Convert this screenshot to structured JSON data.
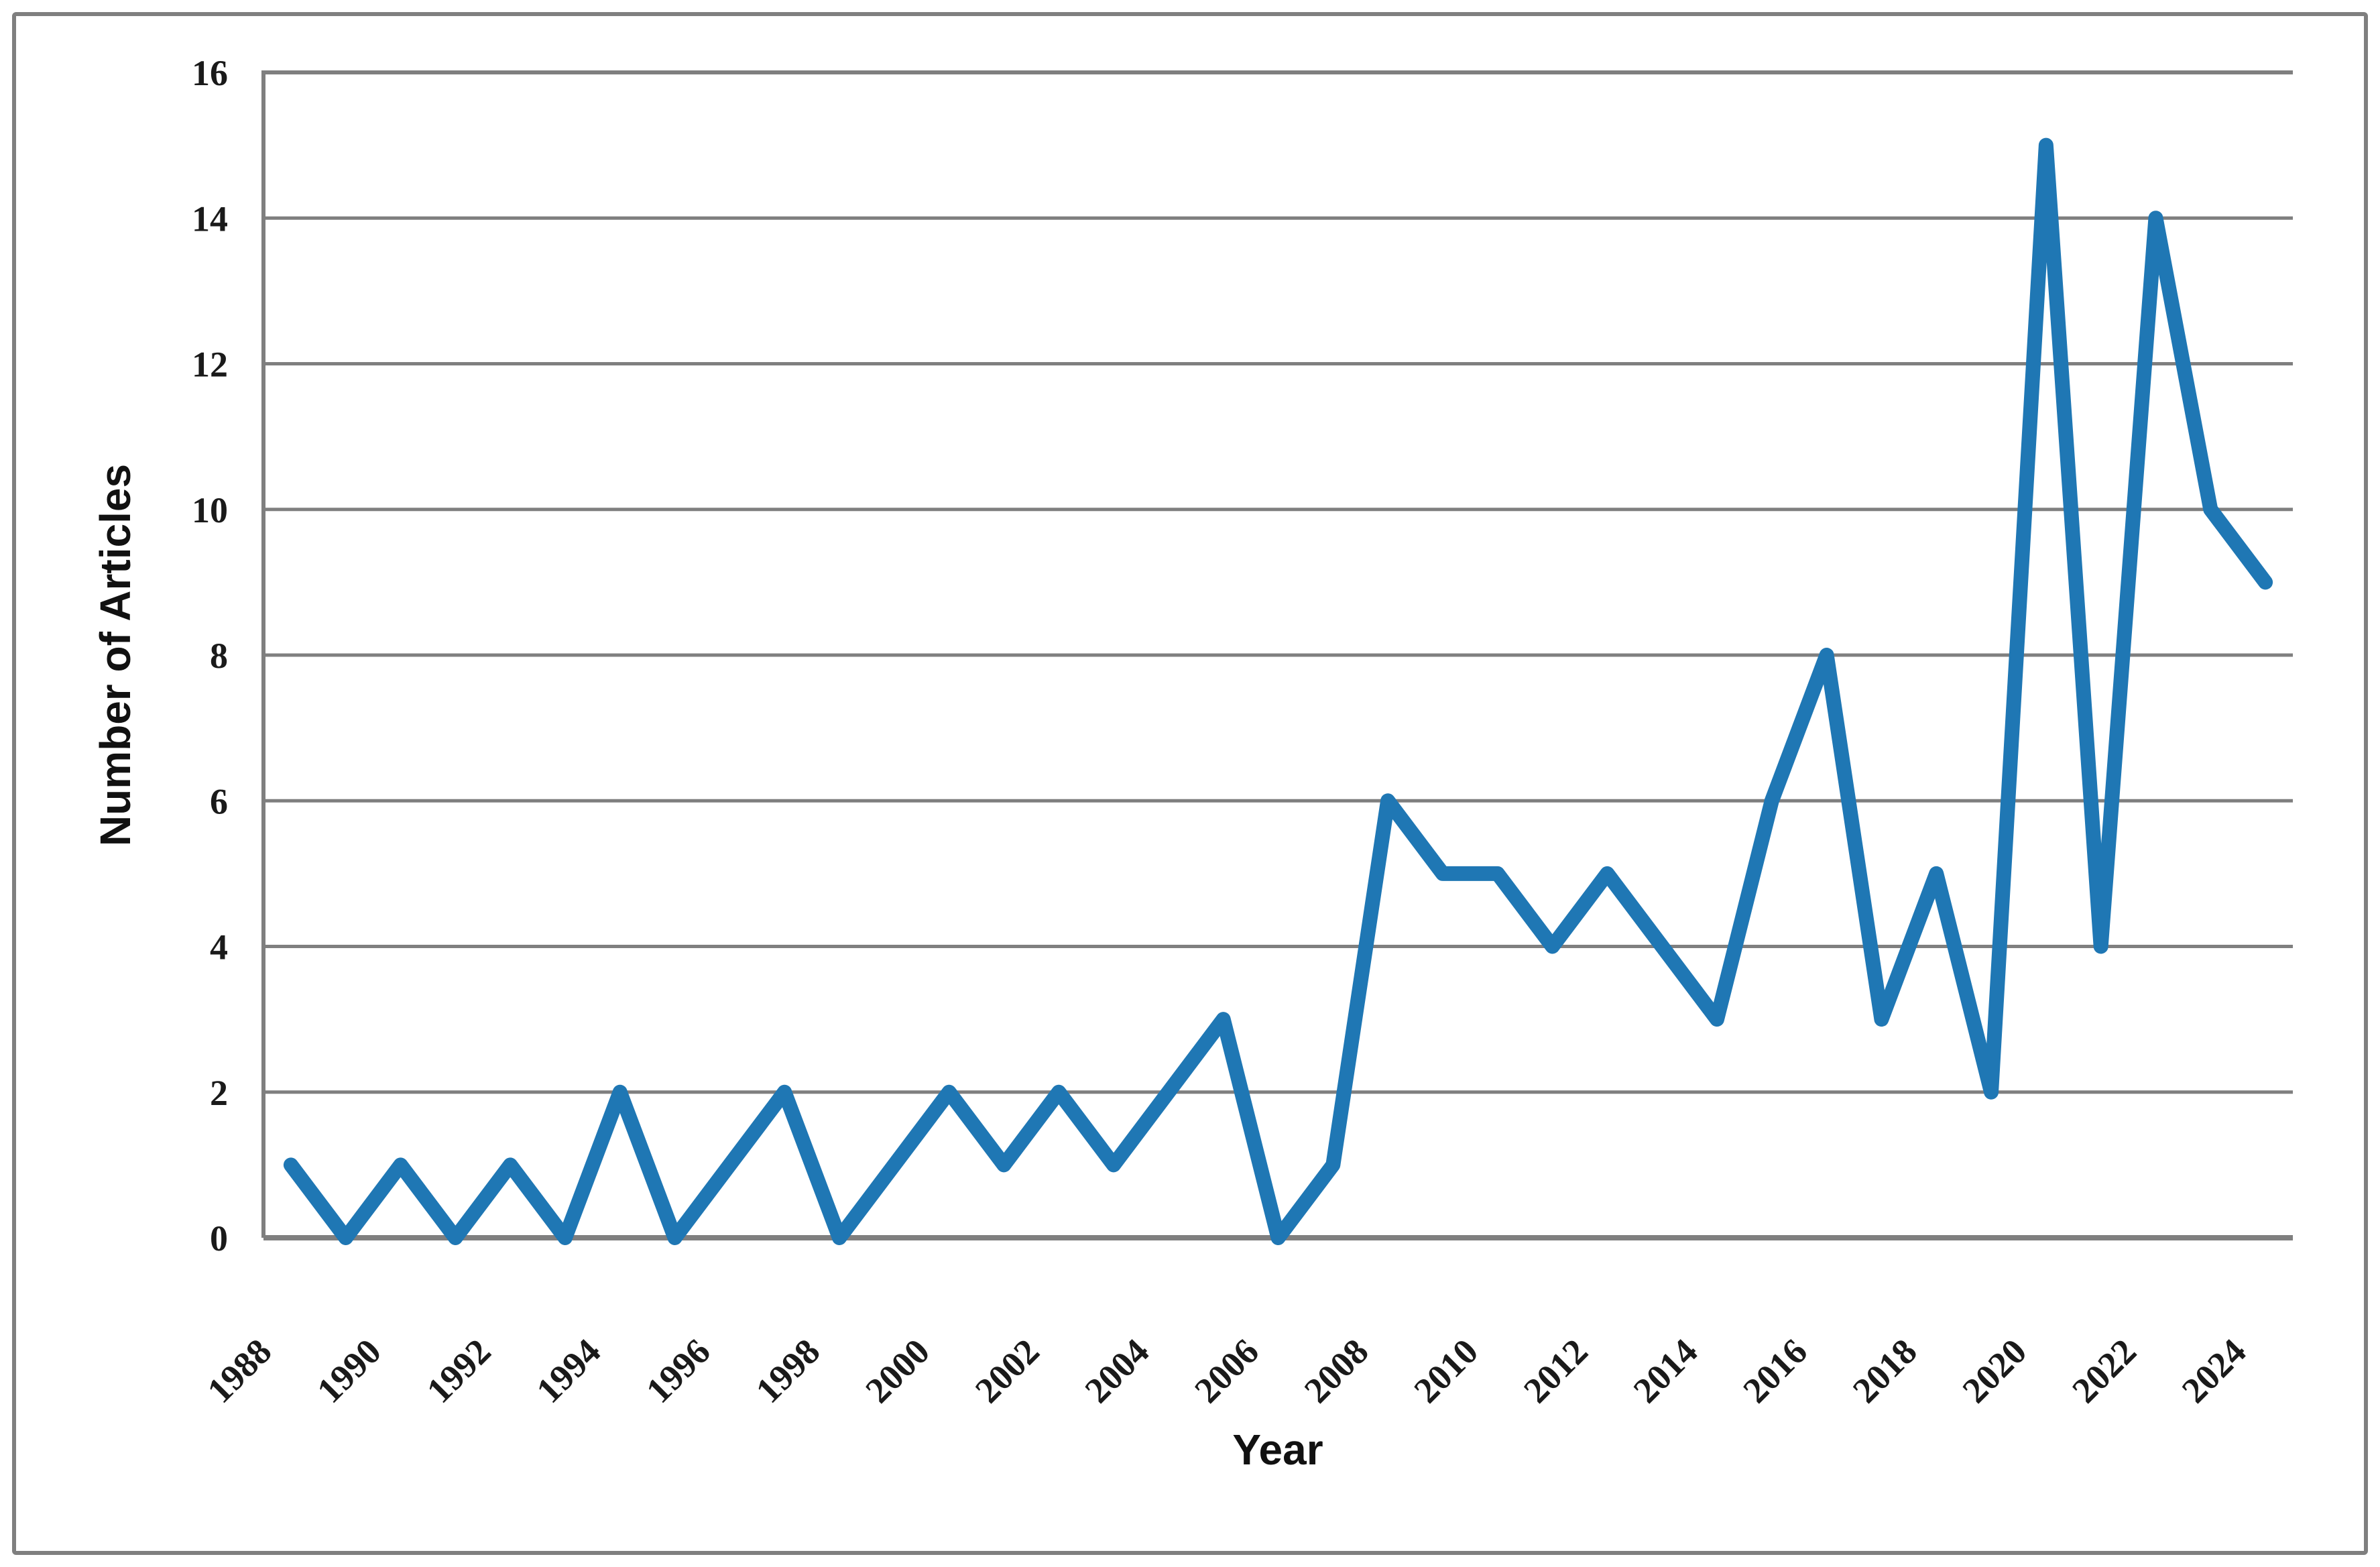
{
  "chart_data": {
    "type": "line",
    "title": "",
    "xlabel": "Year",
    "ylabel": "Number of Articles",
    "x": [
      1988,
      1989,
      1990,
      1991,
      1992,
      1993,
      1994,
      1995,
      1996,
      1997,
      1998,
      1999,
      2000,
      2001,
      2002,
      2003,
      2004,
      2005,
      2006,
      2007,
      2008,
      2009,
      2010,
      2011,
      2012,
      2013,
      2014,
      2015,
      2016,
      2017,
      2018,
      2019,
      2020,
      2021,
      2022,
      2023,
      2024
    ],
    "series": [
      {
        "name": "Number of Articles",
        "values": [
          1,
          0,
          1,
          0,
          1,
          0,
          2,
          0,
          1,
          2,
          0,
          1,
          2,
          1,
          2,
          1,
          2,
          3,
          0,
          1,
          6,
          5,
          5,
          4,
          5,
          4,
          3,
          6,
          8,
          3,
          5,
          2,
          15,
          4,
          14,
          10,
          9
        ]
      }
    ],
    "ylim": [
      0,
      16
    ],
    "yticks": [
      0,
      2,
      4,
      6,
      8,
      10,
      12,
      14,
      16
    ],
    "xtick_labels": [
      "1988",
      "1990",
      "1992",
      "1994",
      "1996",
      "1998",
      "2000",
      "2002",
      "2004",
      "2006",
      "2008",
      "2010",
      "2012",
      "2014",
      "2016",
      "2018",
      "2020",
      "2022",
      "2024"
    ],
    "grid": true,
    "legend_position": "none",
    "line_color": "#1F77B4",
    "axis_color": "#7f7f7f",
    "tick_label_color": "#1a1a1a"
  }
}
